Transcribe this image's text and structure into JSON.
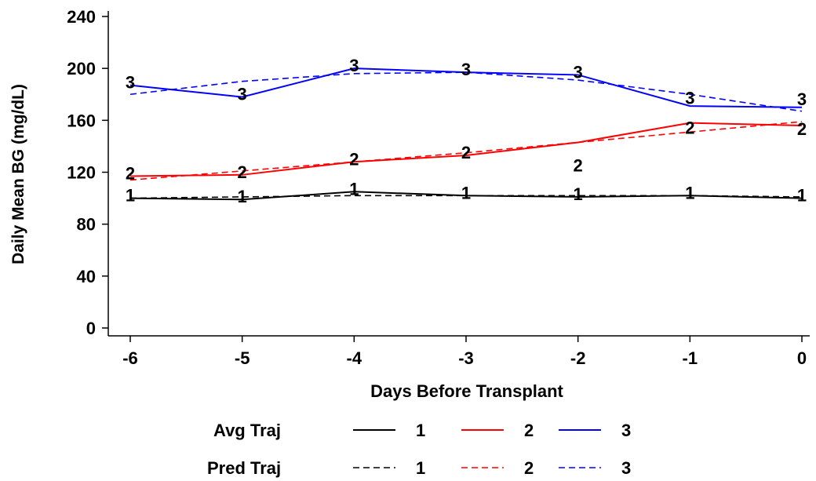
{
  "chart_data": {
    "type": "line",
    "xlabel": "Days Before Transplant",
    "ylabel": "Daily Mean BG (mg/dL)",
    "x": [
      -6,
      -5,
      -4,
      -3,
      -2,
      -1,
      0
    ],
    "xlim": [
      -6,
      0
    ],
    "ylim": [
      0,
      240
    ],
    "y_ticks": [
      0,
      40,
      80,
      120,
      160,
      200,
      240
    ],
    "x_ticks": [
      -6,
      -5,
      -4,
      -3,
      -2,
      -1,
      0
    ],
    "grid": false,
    "legend_placement": "bottom",
    "legend": {
      "avg_title": "Avg Traj",
      "pred_title": "Pred Traj"
    },
    "series": [
      {
        "name": "1",
        "kind": "Avg Traj",
        "group": "1",
        "color": "#000000",
        "dash": "solid",
        "values": [
          100,
          99,
          105,
          102,
          101,
          102,
          100
        ]
      },
      {
        "name": "2",
        "kind": "Avg Traj",
        "group": "2",
        "color": "#ff0000",
        "dash": "solid",
        "values": [
          117,
          118,
          128,
          133,
          143,
          158,
          156
        ]
      },
      {
        "name": "3",
        "kind": "Avg Traj",
        "group": "3",
        "color": "#0000ff",
        "dash": "solid",
        "values": [
          187,
          178,
          200,
          197,
          195,
          171,
          170
        ]
      },
      {
        "name": "1",
        "kind": "Pred Traj",
        "group": "1",
        "color": "#000000",
        "dash": "dashed",
        "values": [
          100,
          101,
          102,
          102,
          102,
          102,
          101
        ]
      },
      {
        "name": "2",
        "kind": "Pred Traj",
        "group": "2",
        "color": "#ff0000",
        "dash": "dashed",
        "values": [
          114,
          121,
          128,
          135,
          143,
          151,
          159
        ]
      },
      {
        "name": "3",
        "kind": "Pred Traj",
        "group": "3",
        "color": "#0000ff",
        "dash": "dashed",
        "values": [
          180,
          190,
          196,
          197,
          191,
          180,
          167
        ]
      }
    ],
    "point_labels": [
      {
        "text": "1",
        "points": [
          [
            -6,
            100
          ],
          [
            -5,
            99
          ],
          [
            -4,
            105
          ],
          [
            -3,
            102
          ],
          [
            -2,
            101
          ],
          [
            -1,
            102
          ],
          [
            0,
            100
          ]
        ]
      },
      {
        "text": "2",
        "points": [
          [
            -6,
            117
          ],
          [
            -5,
            118
          ],
          [
            -4,
            128
          ],
          [
            -3,
            133
          ],
          [
            -2,
            123
          ],
          [
            -1,
            152
          ],
          [
            0,
            151
          ]
        ]
      },
      {
        "text": "3",
        "points": [
          [
            -6,
            187
          ],
          [
            -5,
            178
          ],
          [
            -4,
            200
          ],
          [
            -3,
            197
          ],
          [
            -2,
            195
          ],
          [
            -1,
            175
          ],
          [
            0,
            174
          ]
        ]
      }
    ]
  }
}
